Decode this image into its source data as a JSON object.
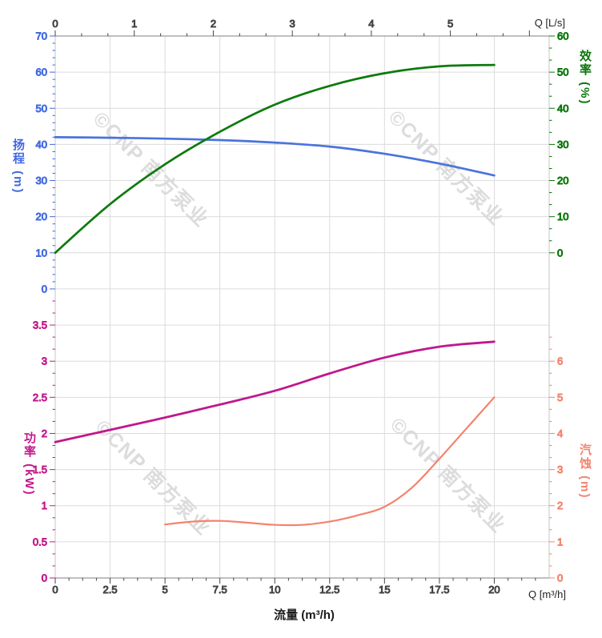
{
  "page": {
    "background": "#ffffff"
  },
  "labels": {
    "flow_title": "流量 (m³/h)",
    "top_unit": "Q [L/s]",
    "bottom_unit": "Q [m³/h]",
    "head": "扬程 (m)",
    "efficiency": "效率 (%)",
    "power": "功率 (kW)",
    "npsh": "汽蚀 (m)"
  },
  "watermark": {
    "text": "©CNP 南方泵业",
    "color": "#d8d8d8"
  },
  "chart_data": {
    "type": "line",
    "title": "",
    "grid": {
      "show": true,
      "color": "#dcdcdc"
    },
    "x_axis": {
      "title": "流量 (m³/h)",
      "unit_label": "Q [m³/h]",
      "unit": "m³/h",
      "range": [
        0,
        22.5
      ],
      "major_ticks": [
        0,
        2.5,
        5,
        7.5,
        10,
        12.5,
        15,
        17.5,
        20
      ],
      "position": "bottom"
    },
    "x_axis_top": {
      "unit_label": "Q [L/s]",
      "unit": "L/s",
      "range": [
        0,
        6.25
      ],
      "major_ticks": [
        0,
        1,
        2,
        3,
        4,
        5
      ],
      "position": "top"
    },
    "y_axes": [
      {
        "id": "head",
        "label": "扬程 (m)",
        "unit": "m",
        "color": "#4169e1",
        "range": [
          0,
          70
        ],
        "tick_step": 10,
        "side": "left",
        "section": "top"
      },
      {
        "id": "efficiency",
        "label": "效率 (%)",
        "unit": "%",
        "color": "#0a760a",
        "range": [
          0,
          60
        ],
        "tick_step": 10,
        "side": "right",
        "section": "top"
      },
      {
        "id": "power",
        "label": "功率 (kW)",
        "unit": "kW",
        "color": "#c4188c",
        "range": [
          0,
          3.5
        ],
        "tick_step": 0.5,
        "side": "left",
        "section": "bottom"
      },
      {
        "id": "npsh",
        "label": "汽蚀 (m)",
        "unit": "m",
        "color": "#f4836d",
        "range": [
          0,
          6
        ],
        "tick_step": 1,
        "side": "right",
        "section": "bottom"
      }
    ],
    "series": [
      {
        "name": "扬程",
        "axis": "head",
        "color": "#4a73dc",
        "points": [
          [
            0,
            42.0
          ],
          [
            2.5,
            41.85
          ],
          [
            5,
            41.6
          ],
          [
            7.5,
            41.2
          ],
          [
            10,
            40.5
          ],
          [
            12.5,
            39.4
          ],
          [
            15,
            37.4
          ],
          [
            17.5,
            34.7
          ],
          [
            20,
            31.4
          ]
        ]
      },
      {
        "name": "效率",
        "axis": "efficiency",
        "color": "#0e7a0e",
        "points": [
          [
            0,
            0
          ],
          [
            2.5,
            13.5
          ],
          [
            5,
            24.5
          ],
          [
            7.5,
            33.5
          ],
          [
            10,
            41.0
          ],
          [
            12.5,
            46.2
          ],
          [
            15,
            49.7
          ],
          [
            17.5,
            51.6
          ],
          [
            20,
            52.0
          ]
        ]
      },
      {
        "name": "功率",
        "axis": "power",
        "color": "#c0188c",
        "points": [
          [
            0,
            1.88
          ],
          [
            2.5,
            2.05
          ],
          [
            5,
            2.22
          ],
          [
            7.5,
            2.4
          ],
          [
            10,
            2.59
          ],
          [
            12.5,
            2.83
          ],
          [
            15,
            3.05
          ],
          [
            17.5,
            3.2
          ],
          [
            20,
            3.27
          ]
        ]
      },
      {
        "name": "汽蚀",
        "axis": "npsh",
        "color": "#f5826c",
        "points": [
          [
            5,
            1.48
          ],
          [
            6.25,
            1.56
          ],
          [
            7.5,
            1.58
          ],
          [
            8.75,
            1.53
          ],
          [
            10,
            1.47
          ],
          [
            11.25,
            1.47
          ],
          [
            12.5,
            1.56
          ],
          [
            13.75,
            1.73
          ],
          [
            15,
            1.97
          ],
          [
            16.25,
            2.5
          ],
          [
            17.5,
            3.3
          ],
          [
            18.75,
            4.15
          ],
          [
            20,
            5.0
          ]
        ]
      }
    ]
  }
}
